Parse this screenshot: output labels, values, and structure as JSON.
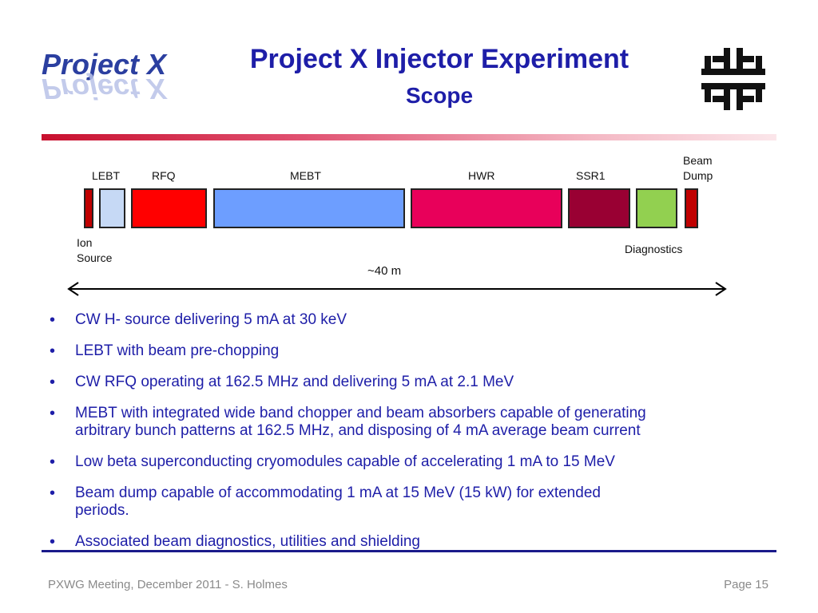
{
  "logo": {
    "text": "Project X"
  },
  "header": {
    "title": "Project X Injector Experiment",
    "subtitle": "Scope"
  },
  "diagram": {
    "labels": {
      "lebt": "LEBT",
      "rfq": "RFQ",
      "mebt": "MEBT",
      "hwr": "HWR",
      "ssr1": "SSR1",
      "beam_dump_1": "Beam",
      "beam_dump_2": "Dump",
      "ion_source_1": "Ion",
      "ion_source_2": "Source",
      "diagnostics": "Diagnostics",
      "length": "~40 m"
    },
    "colors": {
      "ion_source": "#c00000",
      "lebt": "#c6d9f5",
      "rfq": "#ff0000",
      "mebt": "#6d9eff",
      "hwr": "#e8005a",
      "ssr1": "#990033",
      "diagnostics": "#92d050",
      "beam_dump": "#c00000"
    }
  },
  "bullets": [
    {
      "line1": "CW H- source delivering 5 mA at 30 keV",
      "line2": ""
    },
    {
      "line1": "LEBT with beam pre-chopping",
      "line2": ""
    },
    {
      "line1": "CW RFQ operating at 162.5 MHz and delivering 5 mA at 2.1 MeV",
      "line2": ""
    },
    {
      "line1": "MEBT with integrated wide band chopper and beam absorbers capable of generating",
      "line2": "arbitrary bunch patterns at 162.5 MHz,  and disposing of 4 mA average beam current"
    },
    {
      "line1": "Low beta superconducting cryomodules capable of accelerating 1 mA to 15 MeV",
      "line2": ""
    },
    {
      "line1": "Beam dump capable of accommodating 1 mA at 15 MeV (15 kW) for extended",
      "line2": "periods."
    },
    {
      "line1": "Associated beam diagnostics, utilities and shielding",
      "line2": ""
    }
  ],
  "footer": {
    "left": "PXWG Meeting, December 2011 - S. Holmes",
    "right": "Page 15"
  }
}
